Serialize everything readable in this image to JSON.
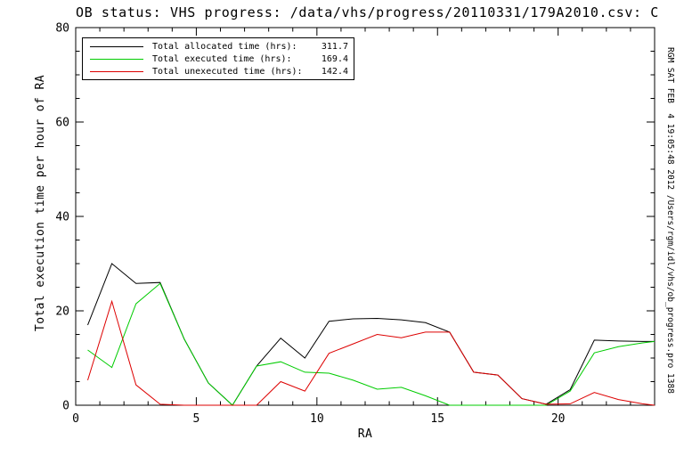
{
  "chart_data": {
    "type": "line",
    "title": "OB status: VHS progress: /data/vhs/progress/20110331/179A2010.csv: C",
    "xlabel": "RA",
    "ylabel": "Total execution time per hour of RA",
    "xlim": [
      0,
      24
    ],
    "ylim": [
      0,
      80
    ],
    "grid": false,
    "legend_position": "top-left",
    "x_tickvals": [
      0,
      5,
      10,
      15,
      20
    ],
    "x_ticklabels": [
      "0",
      "5",
      "10",
      "15",
      "20"
    ],
    "x_minor_step": 1,
    "y_tickvals": [
      0,
      20,
      40,
      60,
      80
    ],
    "y_ticklabels": [
      "0",
      "20",
      "40",
      "60",
      "80"
    ],
    "y_minor_step": 5,
    "x": [
      0.5,
      1.5,
      2.5,
      3.5,
      4.5,
      5.5,
      6.5,
      7.5,
      8.5,
      9.5,
      10.5,
      11.5,
      12.5,
      13.5,
      14.5,
      15.5,
      16.5,
      17.5,
      18.5,
      19.5,
      20.5,
      21.5,
      22.5,
      23.5,
      24
    ],
    "series": [
      {
        "name": "Total allocated time",
        "legend_label": "Total allocated time (hrs):",
        "legend_value": "311.7",
        "color": "#000000",
        "values": [
          17.0,
          30.0,
          25.8,
          26.0,
          14.0,
          4.7,
          0.0,
          8.3,
          14.2,
          10.0,
          17.8,
          18.3,
          18.4,
          18.1,
          17.5,
          15.5,
          7.0,
          6.4,
          1.4,
          0.2,
          3.3,
          13.8,
          13.6,
          13.5,
          13.5
        ]
      },
      {
        "name": "Total executed time",
        "legend_label": "Total executed time (hrs):",
        "legend_value": "169.4",
        "color": "#00cc00",
        "values": [
          11.7,
          8.0,
          21.5,
          25.8,
          14.0,
          4.7,
          0.0,
          8.3,
          9.2,
          7.0,
          6.8,
          5.3,
          3.4,
          3.8,
          2.0,
          0.0,
          0.0,
          0.0,
          0.0,
          0.0,
          3.0,
          11.1,
          12.4,
          13.2,
          13.5
        ]
      },
      {
        "name": "Total unexecuted time",
        "legend_label": "Total unexecuted time (hrs):",
        "legend_value": "142.4",
        "color": "#dd0000",
        "values": [
          5.3,
          22.0,
          4.3,
          0.2,
          0.0,
          0.0,
          0.0,
          0.0,
          5.0,
          3.0,
          11.0,
          13.0,
          15.0,
          14.3,
          15.5,
          15.5,
          7.0,
          6.4,
          1.4,
          0.2,
          0.3,
          2.7,
          1.2,
          0.3,
          0.0
        ]
      }
    ],
    "annotation_right": "RGM SAT FEB  4 19:05:48 2012 /Users/rgm/idl/vhs/ob_progress.pro 1388"
  }
}
